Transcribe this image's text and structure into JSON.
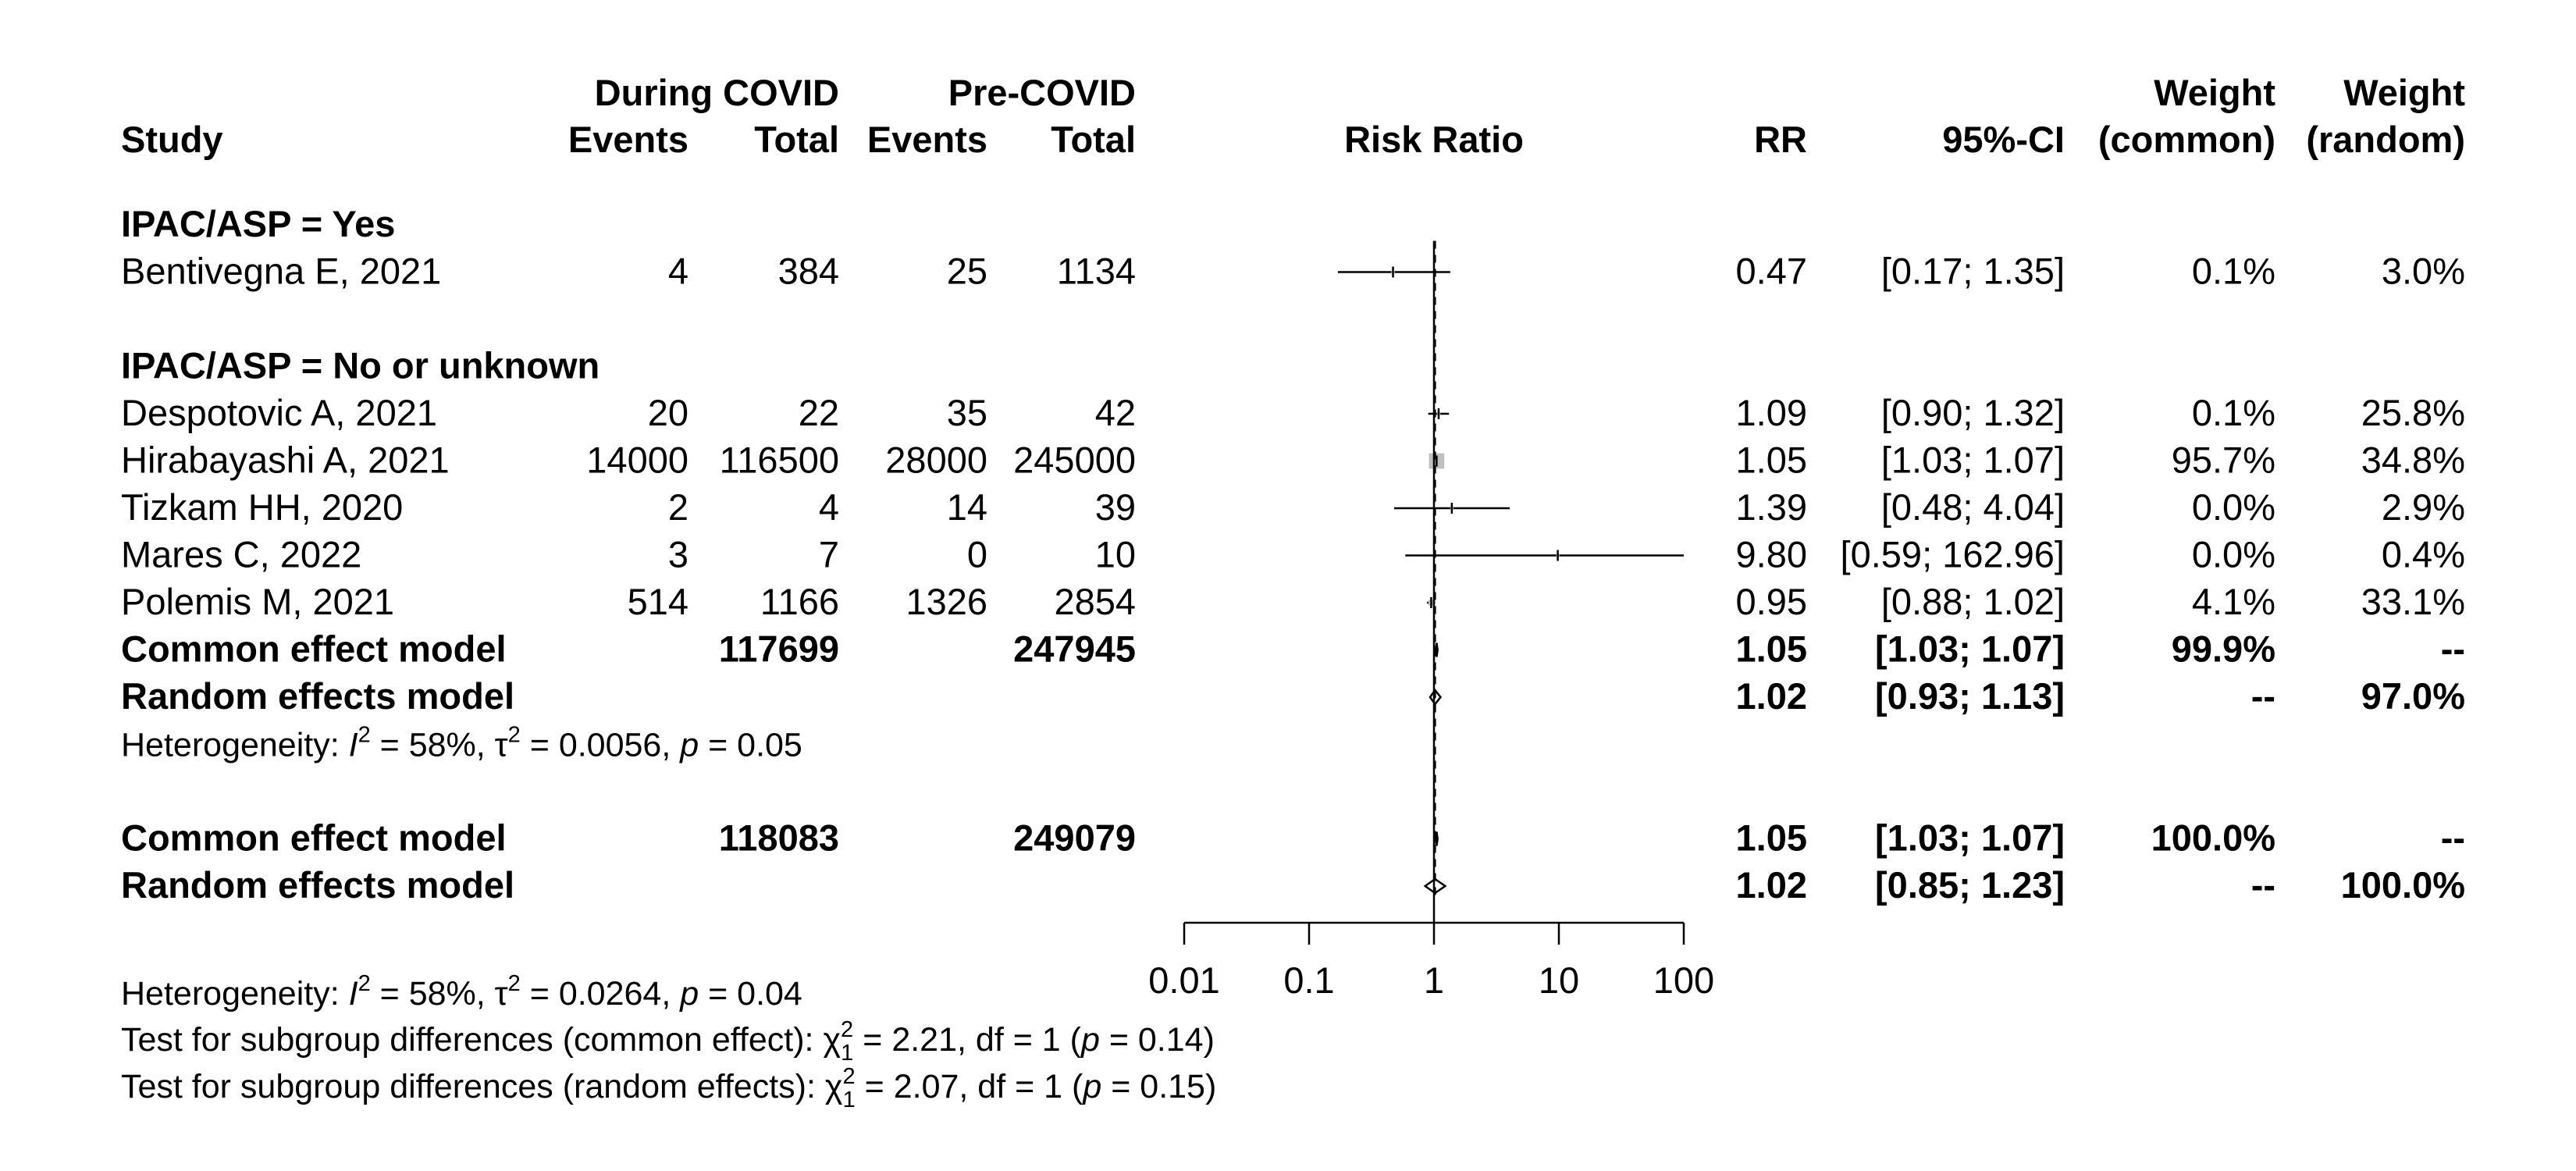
{
  "chart_data": {
    "type": "forest",
    "effect_measure": "Risk Ratio",
    "headers": {
      "study": "Study",
      "group1": "During COVID",
      "group2": "Pre-COVID",
      "events": "Events",
      "total": "Total",
      "plot": "Risk Ratio",
      "rr": "RR",
      "ci": "95%-CI",
      "weight": "Weight",
      "w_common": "(common)",
      "w_random": "(random)"
    },
    "x_scale": "log",
    "xlim": [
      0.01,
      100
    ],
    "x_ticks": [
      0.01,
      0.1,
      1,
      10,
      100
    ],
    "x_tick_labels": [
      "0.01",
      "0.1",
      "1",
      "10",
      "100"
    ],
    "reference_line": 1,
    "rows": [
      {
        "kind": "subgroup",
        "label": "IPAC/ASP = Yes"
      },
      {
        "kind": "study",
        "label": "Bentivegna E, 2021",
        "e1": "4",
        "n1": "384",
        "e2": "25",
        "n2": "1134",
        "rr": 0.47,
        "lo": 0.17,
        "hi": 1.35,
        "rr_text": "0.47",
        "ci_text": "[0.17;  1.35]",
        "w_common": "0.1%",
        "w_random": "3.0%",
        "weight_common_pct": 0.1
      },
      {
        "kind": "blank"
      },
      {
        "kind": "subgroup",
        "label": "IPAC/ASP = No or unknown"
      },
      {
        "kind": "study",
        "label": "Despotovic A, 2021",
        "e1": "20",
        "n1": "22",
        "e2": "35",
        "n2": "42",
        "rr": 1.09,
        "lo": 0.9,
        "hi": 1.32,
        "rr_text": "1.09",
        "ci_text": "[0.90;  1.32]",
        "w_common": "0.1%",
        "w_random": "25.8%",
        "weight_common_pct": 0.1
      },
      {
        "kind": "study",
        "label": "Hirabayashi A, 2021",
        "e1": "14000",
        "n1": "116500",
        "e2": "28000",
        "n2": "245000",
        "rr": 1.05,
        "lo": 1.03,
        "hi": 1.07,
        "rr_text": "1.05",
        "ci_text": "[1.03;  1.07]",
        "w_common": "95.7%",
        "w_random": "34.8%",
        "weight_common_pct": 95.7
      },
      {
        "kind": "study",
        "label": "Tizkam HH, 2020",
        "e1": "2",
        "n1": "4",
        "e2": "14",
        "n2": "39",
        "rr": 1.39,
        "lo": 0.48,
        "hi": 4.04,
        "rr_text": "1.39",
        "ci_text": "[0.48;  4.04]",
        "w_common": "0.0%",
        "w_random": "2.9%",
        "weight_common_pct": 0.0
      },
      {
        "kind": "study",
        "label": "Mares C, 2022",
        "e1": "3",
        "n1": "7",
        "e2": "0",
        "n2": "10",
        "rr": 9.8,
        "lo": 0.59,
        "hi": 162.96,
        "rr_text": "9.80",
        "ci_text": "[0.59; 162.96]",
        "w_common": "0.0%",
        "w_random": "0.4%",
        "weight_common_pct": 0.0
      },
      {
        "kind": "study",
        "label": "Polemis M, 2021",
        "e1": "514",
        "n1": "1166",
        "e2": "1326",
        "n2": "2854",
        "rr": 0.95,
        "lo": 0.88,
        "hi": 1.02,
        "rr_text": "0.95",
        "ci_text": "[0.88;  1.02]",
        "w_common": "4.1%",
        "w_random": "33.1%",
        "weight_common_pct": 4.1
      },
      {
        "kind": "pooled",
        "model": "common",
        "label": "Common effect model",
        "n1": "117699",
        "n2": "247945",
        "rr": 1.05,
        "lo": 1.03,
        "hi": 1.07,
        "rr_text": "1.05",
        "ci_text": "[1.03;  1.07]",
        "w_common": "99.9%",
        "w_random": "--"
      },
      {
        "kind": "pooled",
        "model": "random",
        "label": "Random effects model",
        "rr": 1.02,
        "lo": 0.93,
        "hi": 1.13,
        "rr_text": "1.02",
        "ci_text": "[0.93;  1.13]",
        "w_common": "--",
        "w_random": "97.0%"
      },
      {
        "kind": "het",
        "prefix": "Heterogeneity: ",
        "i2": "I",
        "rest1": " = 58%, τ",
        "rest2": " = 0.0056, ",
        "p": "p",
        "rest3": " = 0.05"
      },
      {
        "kind": "blank"
      },
      {
        "kind": "pooled",
        "model": "common",
        "label": "Common effect model",
        "n1": "118083",
        "n2": "249079",
        "rr": 1.05,
        "lo": 1.03,
        "hi": 1.07,
        "rr_text": "1.05",
        "ci_text": "[1.03;  1.07]",
        "w_common": "100.0%",
        "w_random": "--"
      },
      {
        "kind": "pooled",
        "model": "random",
        "label": "Random effects model",
        "rr": 1.02,
        "lo": 0.85,
        "hi": 1.23,
        "rr_text": "1.02",
        "ci_text": "[0.85;  1.23]",
        "w_common": "--",
        "w_random": "100.0%"
      }
    ],
    "overall_heterogeneity": {
      "prefix": "Heterogeneity: ",
      "i2": "I",
      "rest1": " = 58%, τ",
      "rest2": " = 0.0264, ",
      "p": "p",
      "rest3": " = 0.04"
    },
    "subgroup_tests": [
      {
        "prefix": "Test for subgroup differences (common effect): χ",
        "sub": "1",
        "sup": "2",
        "rest1": " = 2.21, df = 1 (",
        "p": "p",
        "rest2": " = 0.14)"
      },
      {
        "prefix": "Test for subgroup differences (random effects): χ",
        "sub": "1",
        "sup": "2",
        "rest1": " = 2.07, df = 1 (",
        "p": "p",
        "rest2": " = 0.15)"
      }
    ],
    "colors": {
      "ink": "#000000",
      "study_box": "#c0c0c0",
      "ci_line": "#000000"
    }
  }
}
